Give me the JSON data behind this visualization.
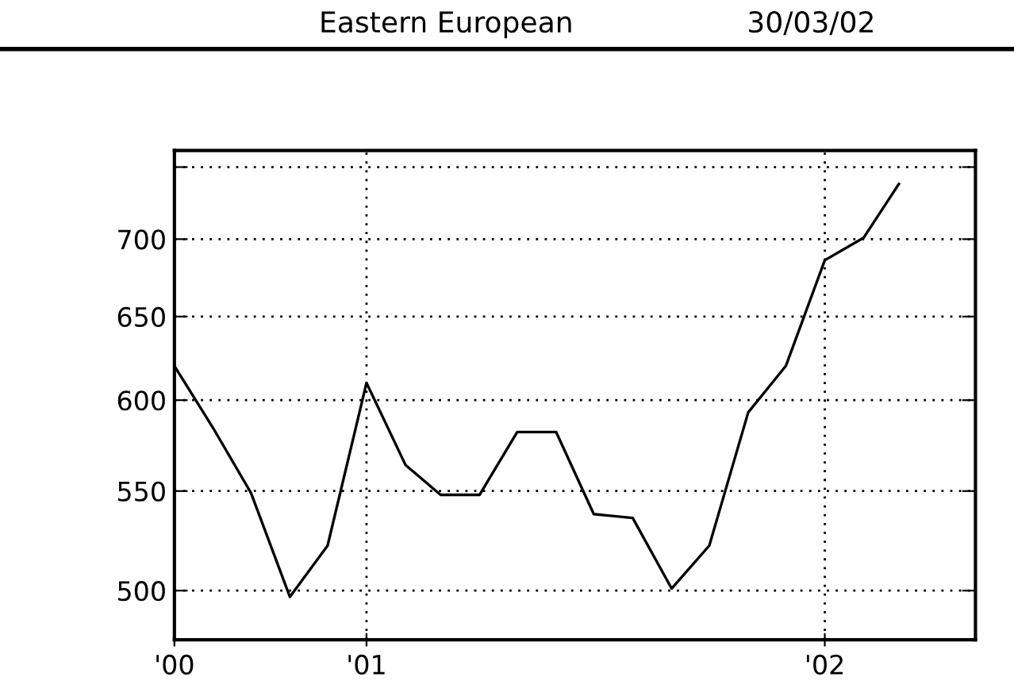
{
  "chart_data": {
    "type": "line",
    "title": "Eastern European",
    "subtitle": "30/03/02",
    "x": [
      "2000-08",
      "2000-09",
      "2000-10",
      "2000-11",
      "2000-12",
      "2001-01",
      "2001-02",
      "2001-03",
      "2001-04",
      "2001-05",
      "2001-06",
      "2001-07",
      "2001-08",
      "2001-09",
      "2001-10",
      "2001-11",
      "2001-12",
      "2002-01",
      "2002-02",
      "2002-03"
    ],
    "series": [
      {
        "color": "#000000",
        "values": [
          620,
          584,
          549,
          497,
          522,
          610,
          564,
          548,
          548,
          582,
          582,
          538,
          536,
          501,
          522,
          593,
          620,
          686,
          701,
          738
        ]
      }
    ],
    "log": "y",
    "xlim": [
      "2000-08",
      "2002-05"
    ],
    "xticks": [
      {
        "value": "2000-08",
        "label": "'00"
      },
      {
        "value": "2001-01",
        "label": "'01"
      },
      {
        "value": "2002-01",
        "label": "'02"
      }
    ],
    "ylim": [
      477,
      762
    ],
    "yticks": [
      500,
      550,
      600,
      650,
      700,
      {
        "value": 750,
        "label": null
      }
    ],
    "grid": true,
    "marker": "none",
    "line_style": "solid"
  }
}
